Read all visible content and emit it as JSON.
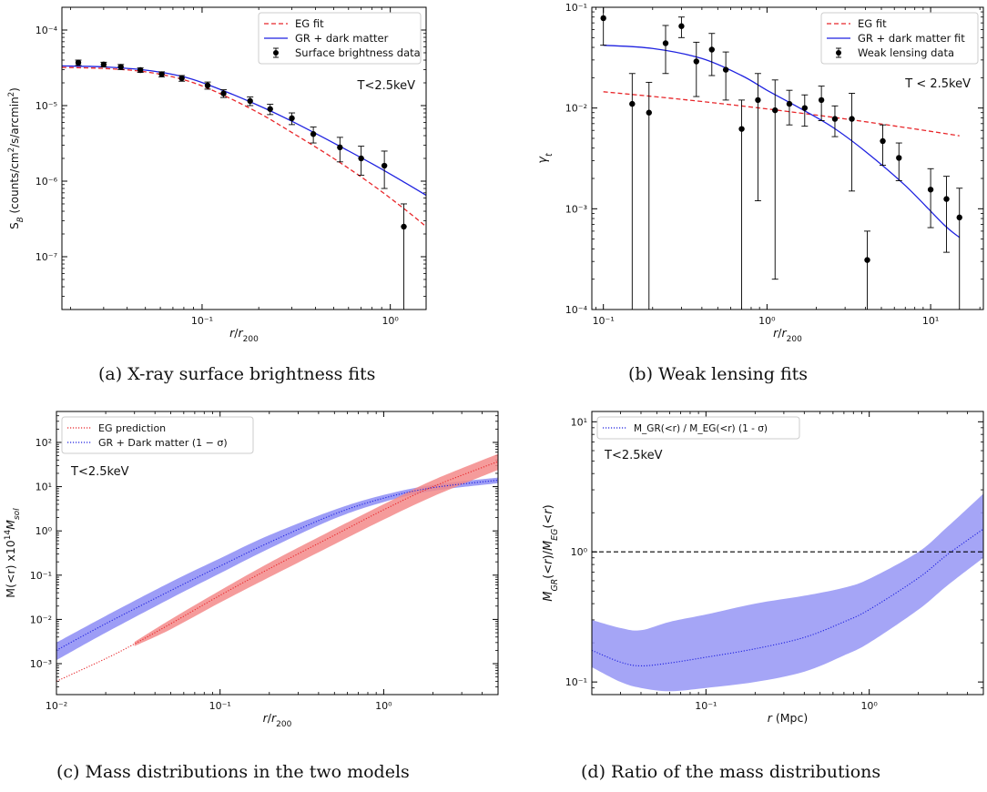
{
  "captions": [
    "(a) X-ray surface brightness fits",
    "(b) Weak lensing fits",
    "(c) Mass distributions in the two models",
    "(d) Ratio of the mass distributions"
  ],
  "colors": {
    "eg": "#e8262a",
    "gr": "#1f22e0",
    "data": "#000000",
    "gr_band": "#8c8cf5",
    "eg_band": "#f38a8a",
    "ratio_band": "#9595f5"
  },
  "chart_data": [
    {
      "type": "line",
      "panel": "a",
      "xlabel": "r/r200",
      "ylabel": "S_B (counts/cm²/s/arcmin²)",
      "xscale": "log",
      "yscale": "log",
      "xlim": [
        0.018,
        1.55
      ],
      "ylim": [
        2e-08,
        0.0002
      ],
      "xticks": [
        {
          "v": 0.1,
          "label": "10⁻¹"
        },
        {
          "v": 1,
          "label": "10⁰"
        }
      ],
      "yticks": [
        {
          "v": 1e-07,
          "label": "10⁻⁷"
        },
        {
          "v": 1e-06,
          "label": "10⁻⁶"
        },
        {
          "v": 1e-05,
          "label": "10⁻⁵"
        },
        {
          "v": 0.0001,
          "label": "10⁻⁴"
        }
      ],
      "annotation": "T<2.5keV",
      "legend": [
        "EG fit",
        "GR + dark matter",
        "Surface brightness data"
      ],
      "legend_position": "top-right",
      "series": [
        {
          "name": "EG fit",
          "style": "dashed",
          "color": "#e8262a",
          "x": [
            0.018,
            0.03,
            0.05,
            0.08,
            0.12,
            0.2,
            0.3,
            0.5,
            0.8,
            1.2,
            1.55
          ],
          "y": [
            3.2e-05,
            3.1e-05,
            2.8e-05,
            2.2e-05,
            1.5e-05,
            8e-06,
            4.4e-06,
            2e-06,
            9e-07,
            4.2e-07,
            2.5e-07
          ]
        },
        {
          "name": "GR + dark matter",
          "style": "solid",
          "color": "#1f22e0",
          "x": [
            0.018,
            0.03,
            0.05,
            0.08,
            0.12,
            0.2,
            0.3,
            0.5,
            0.8,
            1.2,
            1.55
          ],
          "y": [
            3.35e-05,
            3.25e-05,
            2.95e-05,
            2.4e-05,
            1.7e-05,
            1e-05,
            6.2e-06,
            3.2e-06,
            1.7e-06,
            9.5e-07,
            6.5e-07
          ]
        },
        {
          "name": "Surface brightness data",
          "style": "points",
          "color": "#000000",
          "x": [
            0.022,
            0.03,
            0.037,
            0.047,
            0.061,
            0.078,
            0.107,
            0.13,
            0.18,
            0.23,
            0.3,
            0.39,
            0.54,
            0.7,
            0.93,
            1.18
          ],
          "y": [
            3.7e-05,
            3.5e-05,
            3.25e-05,
            2.95e-05,
            2.6e-05,
            2.3e-05,
            1.85e-05,
            1.45e-05,
            1.15e-05,
            9e-06,
            6.8e-06,
            4.2e-06,
            2.8e-06,
            2e-06,
            1.6e-06,
            2.5e-07
          ],
          "lo": [
            3.4e-05,
            3.25e-05,
            3e-05,
            2.75e-05,
            2.4e-05,
            2.1e-05,
            1.65e-05,
            1.28e-05,
            1e-05,
            7.6e-06,
            5.6e-06,
            3.2e-06,
            1.8e-06,
            1.2e-06,
            8e-07,
            2e-08
          ],
          "hi": [
            4e-05,
            3.75e-05,
            3.5e-05,
            3.15e-05,
            2.8e-05,
            2.5e-05,
            2.05e-05,
            1.62e-05,
            1.3e-05,
            1.04e-05,
            8e-06,
            5.2e-06,
            3.8e-06,
            2.9e-06,
            2.5e-06,
            5e-07
          ]
        }
      ]
    },
    {
      "type": "line",
      "panel": "b",
      "xlabel": "r/r200",
      "ylabel": "γt",
      "xscale": "log",
      "yscale": "log",
      "xlim": [
        0.085,
        21
      ],
      "ylim": [
        0.0001,
        0.1
      ],
      "xticks": [
        {
          "v": 0.1,
          "label": "10⁻¹"
        },
        {
          "v": 1,
          "label": "10⁰"
        },
        {
          "v": 10,
          "label": "10¹"
        }
      ],
      "yticks": [
        {
          "v": 0.0001,
          "label": "10⁻⁴"
        },
        {
          "v": 0.001,
          "label": "10⁻³"
        },
        {
          "v": 0.01,
          "label": "10⁻²"
        },
        {
          "v": 0.1,
          "label": "10⁻¹"
        }
      ],
      "annotation": "T < 2.5keV",
      "legend": [
        "EG fit",
        "GR + dark matter fit",
        "Weak lensing data"
      ],
      "legend_position": "top-right",
      "series": [
        {
          "name": "EG fit",
          "style": "dashed",
          "color": "#e8262a",
          "x": [
            0.1,
            0.3,
            1,
            3,
            8,
            15
          ],
          "y": [
            0.0145,
            0.0122,
            0.0098,
            0.0078,
            0.0062,
            0.0053
          ]
        },
        {
          "name": "GR + dark matter fit",
          "style": "solid",
          "color": "#1f22e0",
          "x": [
            0.1,
            0.2,
            0.4,
            0.7,
            1,
            1.5,
            2.5,
            4,
            7,
            12,
            15
          ],
          "y": [
            0.042,
            0.039,
            0.031,
            0.021,
            0.015,
            0.0105,
            0.0065,
            0.0037,
            0.0017,
            0.0007,
            0.00052
          ]
        },
        {
          "name": "Weak lensing data",
          "style": "points",
          "color": "#000000",
          "x": [
            0.1,
            0.15,
            0.19,
            0.24,
            0.3,
            0.37,
            0.46,
            0.56,
            0.7,
            0.88,
            1.12,
            1.37,
            1.7,
            2.15,
            2.6,
            3.3,
            4.1,
            5.1,
            6.4,
            10,
            12.5,
            15
          ],
          "y": [
            0.078,
            0.011,
            0.009,
            0.044,
            0.065,
            0.029,
            0.038,
            0.024,
            0.0062,
            0.012,
            0.0095,
            0.011,
            0.01,
            0.012,
            0.0078,
            0.0078,
            0.00031,
            0.0047,
            0.0032,
            0.00155,
            0.00125,
            0.00082
          ],
          "lo": [
            0.042,
            0.0001,
            0.0001,
            0.022,
            0.05,
            0.013,
            0.021,
            0.012,
            0.0001,
            0.0012,
            0.0002,
            0.0068,
            0.0066,
            0.0075,
            0.0052,
            0.0015,
            9e-05,
            0.0027,
            0.0019,
            0.00065,
            0.00037,
            0.0001
          ],
          "hi": [
            0.1,
            0.022,
            0.018,
            0.066,
            0.08,
            0.045,
            0.055,
            0.036,
            0.012,
            0.022,
            0.019,
            0.015,
            0.0135,
            0.0165,
            0.0105,
            0.014,
            0.0006,
            0.0068,
            0.0045,
            0.0025,
            0.0021,
            0.0016
          ]
        }
      ]
    },
    {
      "type": "area",
      "panel": "c",
      "xlabel": "r/r200",
      "ylabel": "M(<r) x10¹⁴ M_sol",
      "xscale": "log",
      "yscale": "log",
      "xlim": [
        0.01,
        5
      ],
      "ylim": [
        0.0002,
        500
      ],
      "xticks": [
        {
          "v": 0.01,
          "label": "10⁻²"
        },
        {
          "v": 0.1,
          "label": "10⁻¹"
        },
        {
          "v": 1,
          "label": "10⁰"
        }
      ],
      "yticks": [
        {
          "v": 0.001,
          "label": "10⁻³"
        },
        {
          "v": 0.01,
          "label": "10⁻²"
        },
        {
          "v": 0.1,
          "label": "10⁻¹"
        },
        {
          "v": 1,
          "label": "10⁰"
        },
        {
          "v": 10,
          "label": "10¹"
        },
        {
          "v": 100,
          "label": "10²"
        }
      ],
      "annotation": "T<2.5keV",
      "legend": [
        "EG prediction",
        "GR + Dark matter (1 − σ)"
      ],
      "legend_position": "top-left",
      "series": [
        {
          "name": "EG prediction",
          "style": "dotted",
          "color": "#e8262a",
          "x": [
            0.01,
            0.02,
            0.03,
            0.05,
            0.1,
            0.2,
            0.5,
            1,
            2,
            5
          ],
          "y": [
            0.0004,
            0.0013,
            0.0028,
            0.008,
            0.035,
            0.14,
            0.8,
            3,
            10,
            37
          ],
          "lo": [
            null,
            null,
            0.0025,
            0.006,
            0.024,
            0.09,
            0.5,
            1.8,
            6,
            24
          ],
          "hi": [
            null,
            null,
            0.0031,
            0.01,
            0.045,
            0.19,
            1.1,
            4,
            14,
            55
          ]
        },
        {
          "name": "GR + Dark matter (1 − σ)",
          "style": "dotted",
          "color": "#1f22e0",
          "x": [
            0.01,
            0.02,
            0.05,
            0.1,
            0.2,
            0.5,
            1,
            2,
            5
          ],
          "y": [
            0.002,
            0.008,
            0.045,
            0.16,
            0.55,
            2.4,
            5.5,
            9.5,
            14
          ],
          "lo": [
            0.0012,
            0.005,
            0.03,
            0.11,
            0.4,
            1.9,
            4.5,
            8,
            12
          ],
          "hi": [
            0.003,
            0.012,
            0.07,
            0.24,
            0.8,
            3,
            6.5,
            11,
            16
          ]
        }
      ]
    },
    {
      "type": "area",
      "panel": "d",
      "xlabel": "r (Mpc)",
      "ylabel": "M_GR(<r)/M_EG(<r)",
      "xscale": "log",
      "yscale": "log",
      "xlim": [
        0.02,
        5
      ],
      "ylim": [
        0.08,
        12
      ],
      "xticks": [
        {
          "v": 0.1,
          "label": "10⁻¹"
        },
        {
          "v": 1,
          "label": "10⁰"
        }
      ],
      "yticks": [
        {
          "v": 0.1,
          "label": "10⁻¹"
        },
        {
          "v": 1,
          "label": "10⁰"
        },
        {
          "v": 10,
          "label": "10¹"
        }
      ],
      "annotation": "T<2.5keV",
      "legend": [
        "M_GR(<r) / M_EG(<r) (1 - σ)"
      ],
      "legend_position": "top-left",
      "reference_line": 1,
      "series": [
        {
          "name": "M_GR(<r) / M_EG(<r) (1 - σ)",
          "style": "dotted",
          "color": "#1f22e0",
          "x": [
            0.02,
            0.03,
            0.04,
            0.06,
            0.1,
            0.2,
            0.4,
            0.7,
            1,
            2,
            3,
            5
          ],
          "y": [
            0.175,
            0.142,
            0.133,
            0.14,
            0.155,
            0.18,
            0.22,
            0.29,
            0.36,
            0.63,
            0.95,
            1.5
          ],
          "lo": [
            0.13,
            0.1,
            0.09,
            0.085,
            0.09,
            0.1,
            0.12,
            0.16,
            0.2,
            0.36,
            0.55,
            0.9
          ],
          "hi": [
            0.3,
            0.26,
            0.25,
            0.29,
            0.33,
            0.4,
            0.46,
            0.53,
            0.62,
            1.0,
            1.55,
            2.8
          ]
        }
      ]
    }
  ]
}
